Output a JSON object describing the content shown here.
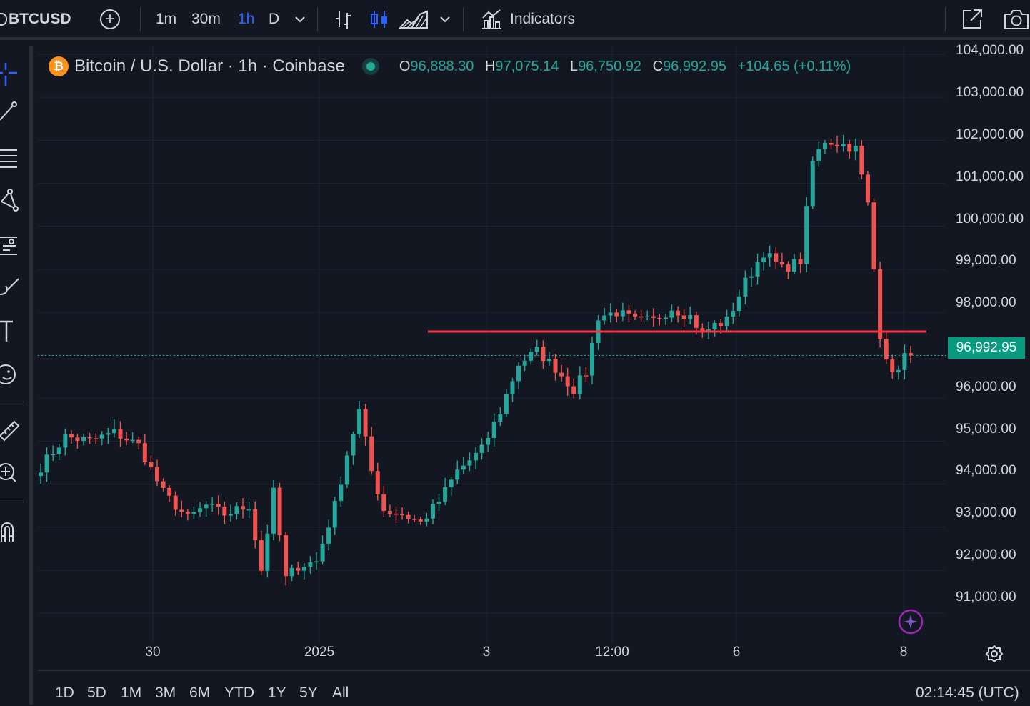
{
  "toolbar": {
    "symbol": "BTCUSD",
    "intervals": [
      "1m",
      "30m",
      "1h",
      "D"
    ],
    "active_interval": "1h",
    "indicators_label": "Indicators"
  },
  "legend": {
    "title": "Bitcoin / U.S. Dollar · 1h · Coinbase",
    "open_key": "O",
    "open": "96,888.30",
    "high_key": "H",
    "high": "97,075.14",
    "low_key": "L",
    "low": "96,750.92",
    "close_key": "C",
    "close": "96,992.95",
    "change": "+104.65 (+0.11%)"
  },
  "price_axis": {
    "labels": [
      "104,000.00",
      "103,000.00",
      "102,000.00",
      "101,000.00",
      "100,000.00",
      "99,000.00",
      "98,000.00",
      "97,000.00",
      "96,000.00",
      "95,000.00",
      "94,000.00",
      "93,000.00",
      "92,000.00",
      "91,000.00"
    ],
    "current_price": "96,992.95"
  },
  "time_axis": {
    "labels": [
      "30",
      "2025",
      "3",
      "12:00",
      "6",
      "8"
    ]
  },
  "range_buttons": [
    "1D",
    "5D",
    "1M",
    "3M",
    "6M",
    "YTD",
    "1Y",
    "5Y",
    "All"
  ],
  "clock": "02:14:45 (UTC)",
  "colors": {
    "background": "#131722",
    "up": "#26a69a",
    "down": "#ef5350",
    "horizontal_line": "#f23645",
    "active_interval": "#2962ff"
  },
  "chart_data": {
    "type": "candlestick",
    "symbol": "BTCUSD",
    "interval": "1h",
    "ylim": [
      90300,
      104200
    ],
    "horizontal_line": 97550,
    "current_price": 96992.95,
    "x_ticks": [
      "30",
      "2025",
      "3",
      "12:00",
      "6",
      "8"
    ],
    "close_path": [
      [
        0,
        94400
      ],
      [
        4,
        95100
      ],
      [
        8,
        95000
      ],
      [
        12,
        95200
      ],
      [
        16,
        94900
      ],
      [
        20,
        93800
      ],
      [
        24,
        93200
      ],
      [
        27,
        93500
      ],
      [
        30,
        93300
      ],
      [
        34,
        93500
      ],
      [
        36,
        92000
      ],
      [
        38,
        93800
      ],
      [
        40,
        91800
      ],
      [
        42,
        92100
      ],
      [
        45,
        92200
      ],
      [
        48,
        93500
      ],
      [
        50,
        94700
      ],
      [
        52,
        95700
      ],
      [
        54,
        94300
      ],
      [
        56,
        93400
      ],
      [
        59,
        93300
      ],
      [
        62,
        93100
      ],
      [
        65,
        93600
      ],
      [
        68,
        94300
      ],
      [
        72,
        94800
      ],
      [
        75,
        95700
      ],
      [
        78,
        96800
      ],
      [
        81,
        97100
      ],
      [
        84,
        96700
      ],
      [
        87,
        96200
      ],
      [
        89,
        96600
      ],
      [
        91,
        97900
      ],
      [
        94,
        98000
      ],
      [
        97,
        97800
      ],
      [
        100,
        97800
      ],
      [
        103,
        98100
      ],
      [
        106,
        97900
      ],
      [
        108,
        97500
      ],
      [
        110,
        97700
      ],
      [
        112,
        97800
      ],
      [
        115,
        98700
      ],
      [
        118,
        99400
      ],
      [
        121,
        99000
      ],
      [
        124,
        99200
      ],
      [
        126,
        101500
      ],
      [
        128,
        102000
      ],
      [
        131,
        101900
      ],
      [
        133,
        101800
      ],
      [
        135,
        100500
      ],
      [
        137,
        97500
      ],
      [
        139,
        96500
      ],
      [
        141,
        97000
      ],
      [
        142,
        96993
      ]
    ]
  }
}
